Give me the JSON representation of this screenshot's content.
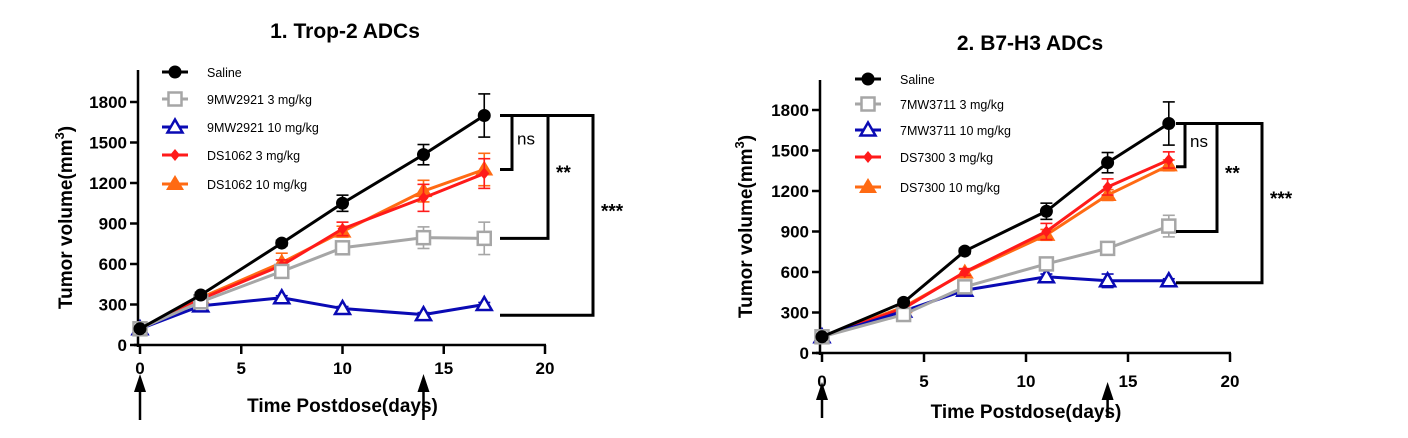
{
  "chart_data": [
    {
      "type": "line",
      "title": "1. Trop-2 ADCs",
      "xlabel": "Time Postdose(days)",
      "ylabel": "Tumor volume(mm",
      "ylabel_superscript": "3",
      "ylabel_close": ")",
      "xlim": [
        0,
        20
      ],
      "ylim": [
        0,
        1800
      ],
      "xticks": [
        "0",
        "5",
        "10",
        "15",
        "20"
      ],
      "yticks": [
        "0",
        "300",
        "600",
        "900",
        "1200",
        "1500",
        "1800"
      ],
      "dosing_days": [
        0,
        14
      ],
      "legend_position": "top-left",
      "x": [
        0,
        3,
        7,
        10,
        14,
        17
      ],
      "series": [
        {
          "name": "Saline",
          "color": "#000000",
          "marker": "circle-filled",
          "values": [
            120,
            370,
            755,
            1050,
            1410,
            1700
          ],
          "errors": [
            0,
            20,
            20,
            60,
            75,
            160
          ]
        },
        {
          "name": "9MW2921 3 mg/kg",
          "color": "#a6a6a6",
          "marker": "square-open",
          "values": [
            120,
            320,
            545,
            720,
            795,
            790
          ],
          "errors": [
            0,
            15,
            30,
            30,
            80,
            120
          ]
        },
        {
          "name": "9MW2921 10 mg/kg",
          "color": "#0a0ab4",
          "marker": "triangle-open",
          "values": [
            120,
            290,
            350,
            270,
            225,
            300
          ],
          "errors": [
            0,
            10,
            15,
            15,
            15,
            15
          ]
        },
        {
          "name": "DS1062 3 mg/kg",
          "color": "#ff1a1a",
          "marker": "diamond-filled",
          "values": [
            120,
            340,
            590,
            860,
            1090,
            1270
          ],
          "errors": [
            0,
            15,
            40,
            50,
            100,
            110
          ]
        },
        {
          "name": "DS1062 10 mg/kg",
          "color": "#ff6a13",
          "marker": "triangle-filled",
          "values": [
            120,
            350,
            610,
            840,
            1140,
            1300
          ],
          "errors": [
            0,
            15,
            70,
            40,
            80,
            120
          ]
        }
      ],
      "significance": [
        {
          "label": "ns",
          "from": 1700,
          "to": 1300
        },
        {
          "label": "**",
          "from": 1700,
          "to": 790
        },
        {
          "label": "***",
          "from": 1700,
          "to": 220
        }
      ]
    },
    {
      "type": "line",
      "title": "2. B7-H3 ADCs",
      "xlabel": "Time Postdose(days)",
      "ylabel": "Tumor volume(mm",
      "ylabel_superscript": "3",
      "ylabel_close": ")",
      "xlim": [
        0,
        20
      ],
      "ylim": [
        0,
        1800
      ],
      "xticks": [
        "0",
        "5",
        "10",
        "15",
        "20"
      ],
      "yticks": [
        "0",
        "300",
        "600",
        "900",
        "1200",
        "1500",
        "1800"
      ],
      "dosing_days": [
        0,
        14
      ],
      "legend_position": "top-left",
      "x": [
        0,
        4,
        7,
        11,
        14,
        17
      ],
      "series": [
        {
          "name": "Saline",
          "color": "#000000",
          "marker": "circle-filled",
          "values": [
            120,
            375,
            755,
            1050,
            1410,
            1700
          ],
          "errors": [
            0,
            20,
            20,
            60,
            75,
            160
          ]
        },
        {
          "name": "7MW3711 3 mg/kg",
          "color": "#a6a6a6",
          "marker": "square-open",
          "values": [
            120,
            285,
            490,
            660,
            775,
            940
          ],
          "errors": [
            0,
            15,
            20,
            25,
            25,
            80
          ]
        },
        {
          "name": "7MW3711 10 mg/kg",
          "color": "#0a0ab4",
          "marker": "triangle-open",
          "values": [
            120,
            310,
            465,
            565,
            535,
            535
          ],
          "errors": [
            0,
            10,
            15,
            20,
            50,
            15
          ]
        },
        {
          "name": "DS7300 3 mg/kg",
          "color": "#ff1a1a",
          "marker": "diamond-filled",
          "values": [
            120,
            330,
            600,
            900,
            1230,
            1430
          ],
          "errors": [
            0,
            15,
            25,
            60,
            60,
            60
          ]
        },
        {
          "name": "DS7300 10 mg/kg",
          "color": "#ff6a13",
          "marker": "triangle-filled",
          "values": [
            120,
            340,
            595,
            875,
            1170,
            1390
          ],
          "errors": [
            0,
            15,
            25,
            40,
            40,
            40
          ]
        }
      ],
      "significance": [
        {
          "label": "ns",
          "from": 1700,
          "to": 1380
        },
        {
          "label": "**",
          "from": 1700,
          "to": 900
        },
        {
          "label": "***",
          "from": 1700,
          "to": 520
        }
      ]
    }
  ]
}
